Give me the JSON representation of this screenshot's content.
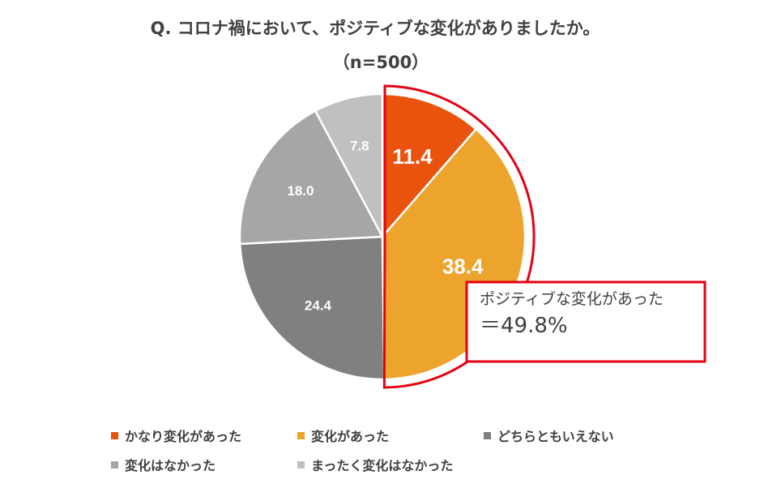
{
  "chart_data": {
    "type": "pie",
    "title": "Q. コロナ禍において、ポジティブな変化がありましたか。",
    "subtitle": "（n=500）",
    "unit": "%",
    "start_angle_deg": 0,
    "direction": "clockwise",
    "slices": [
      {
        "label": "かなり変化があった",
        "value": 11.4,
        "display": "11.4",
        "color": "#E9530D"
      },
      {
        "label": "変化があった",
        "value": 38.4,
        "display": "38.4",
        "color": "#EDA42D"
      },
      {
        "label": "どちらともいえない",
        "value": 24.4,
        "display": "24.4",
        "color": "#808080"
      },
      {
        "label": "変化はなかった",
        "value": 18.0,
        "display": "18.0",
        "color": "#A6A6A6"
      },
      {
        "label": "まったく変化はなかった",
        "value": 7.8,
        "display": "7.8",
        "color": "#C0C0C0"
      }
    ],
    "highlight": {
      "slices": [
        "かなり変化があった",
        "変化があった"
      ],
      "outline_color": "#E60012",
      "callout_line1": "ポジティブな変化があった",
      "callout_line2": "＝49.8%",
      "callout_value": 49.8
    },
    "legend_position": "bottom",
    "label_colors": {
      "dark_background": "#FFFFFF",
      "light_background": "#FFFFFF"
    }
  }
}
